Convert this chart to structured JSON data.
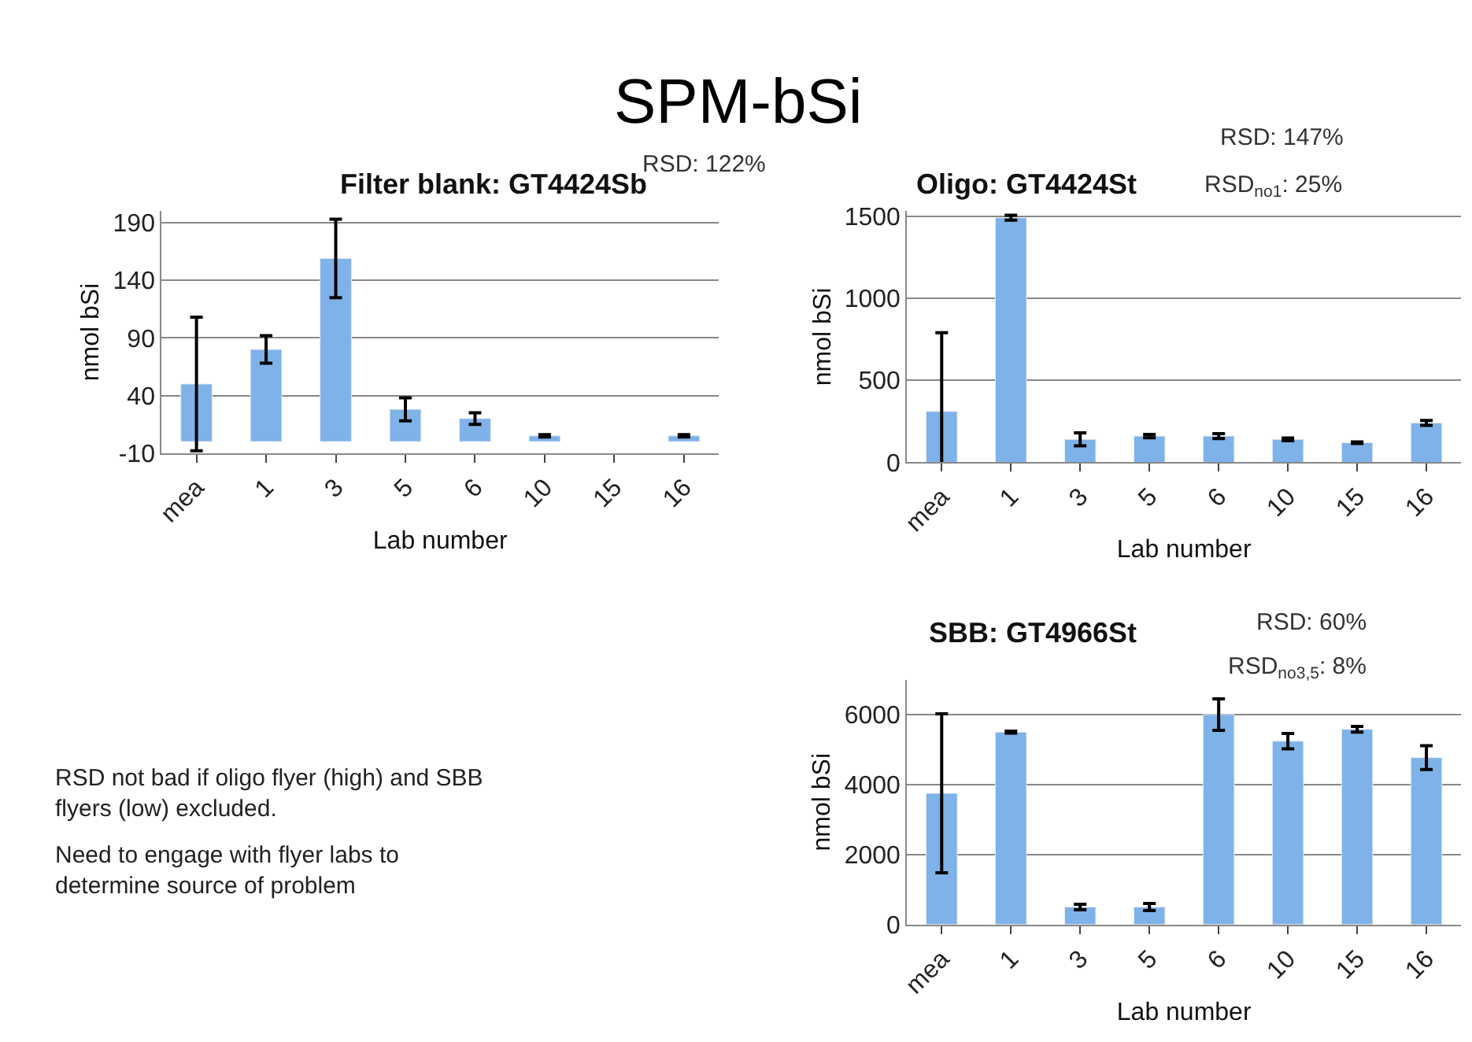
{
  "chart_data": [
    {
      "type": "bar",
      "title": "Filter blank: GT4424Sb",
      "xlabel": "Lab number",
      "ylabel": "nmol bSi",
      "categories": [
        "mea",
        "1",
        "3",
        "5",
        "6",
        "10",
        "15",
        "16"
      ],
      "values": [
        50,
        80,
        159,
        28,
        20,
        5,
        null,
        5
      ],
      "errors": [
        58,
        12,
        34,
        10,
        5,
        1,
        null,
        1
      ],
      "color": "#7fb2e8",
      "ylim": [
        -10,
        200
      ],
      "yticks": [
        -10,
        40,
        90,
        140,
        190
      ],
      "grid": "y",
      "annotations": [
        "RSD: 122%"
      ]
    },
    {
      "type": "bar",
      "title": "Oligo: GT4424St",
      "xlabel": "Lab number",
      "ylabel": "nmol bSi",
      "categories": [
        "mea",
        "1",
        "3",
        "5",
        "6",
        "10",
        "15",
        "16"
      ],
      "values": [
        310,
        1490,
        140,
        160,
        160,
        140,
        120,
        240
      ],
      "errors": [
        480,
        15,
        40,
        10,
        15,
        8,
        5,
        15
      ],
      "color": "#7fb2e8",
      "ylim": [
        0,
        1530
      ],
      "yticks": [
        0,
        500,
        1000,
        1500
      ],
      "grid": "y",
      "annotations": [
        "RSD: 147%",
        "RSD$_{no1}$: 25%"
      ]
    },
    {
      "type": "bar",
      "title": "SBB: GT4966St",
      "xlabel": "Lab number",
      "ylabel": "nmol bSi",
      "categories": [
        "mea",
        "1",
        "3",
        "5",
        "6",
        "10",
        "15",
        "16"
      ],
      "values": [
        3750,
        5500,
        500,
        500,
        6000,
        5240,
        5580,
        4770
      ],
      "errors": [
        2270,
        30,
        80,
        100,
        450,
        220,
        80,
        340
      ],
      "color": "#7fb2e8",
      "ylim": [
        0,
        7000
      ],
      "yticks": [
        0,
        2000,
        4000,
        6000
      ],
      "grid": "y",
      "annotations": [
        "RSD: 60%",
        "RSD$_{no3,5}$: 8%"
      ]
    },
    {
      "type": "other",
      "title": "SPM-bSi",
      "annotations": [
        "RSD not bad if oligo flyer (high) and SBB flyers (low) excluded.",
        "Need to engage with flyer labs to determine source of problem"
      ]
    }
  ]
}
